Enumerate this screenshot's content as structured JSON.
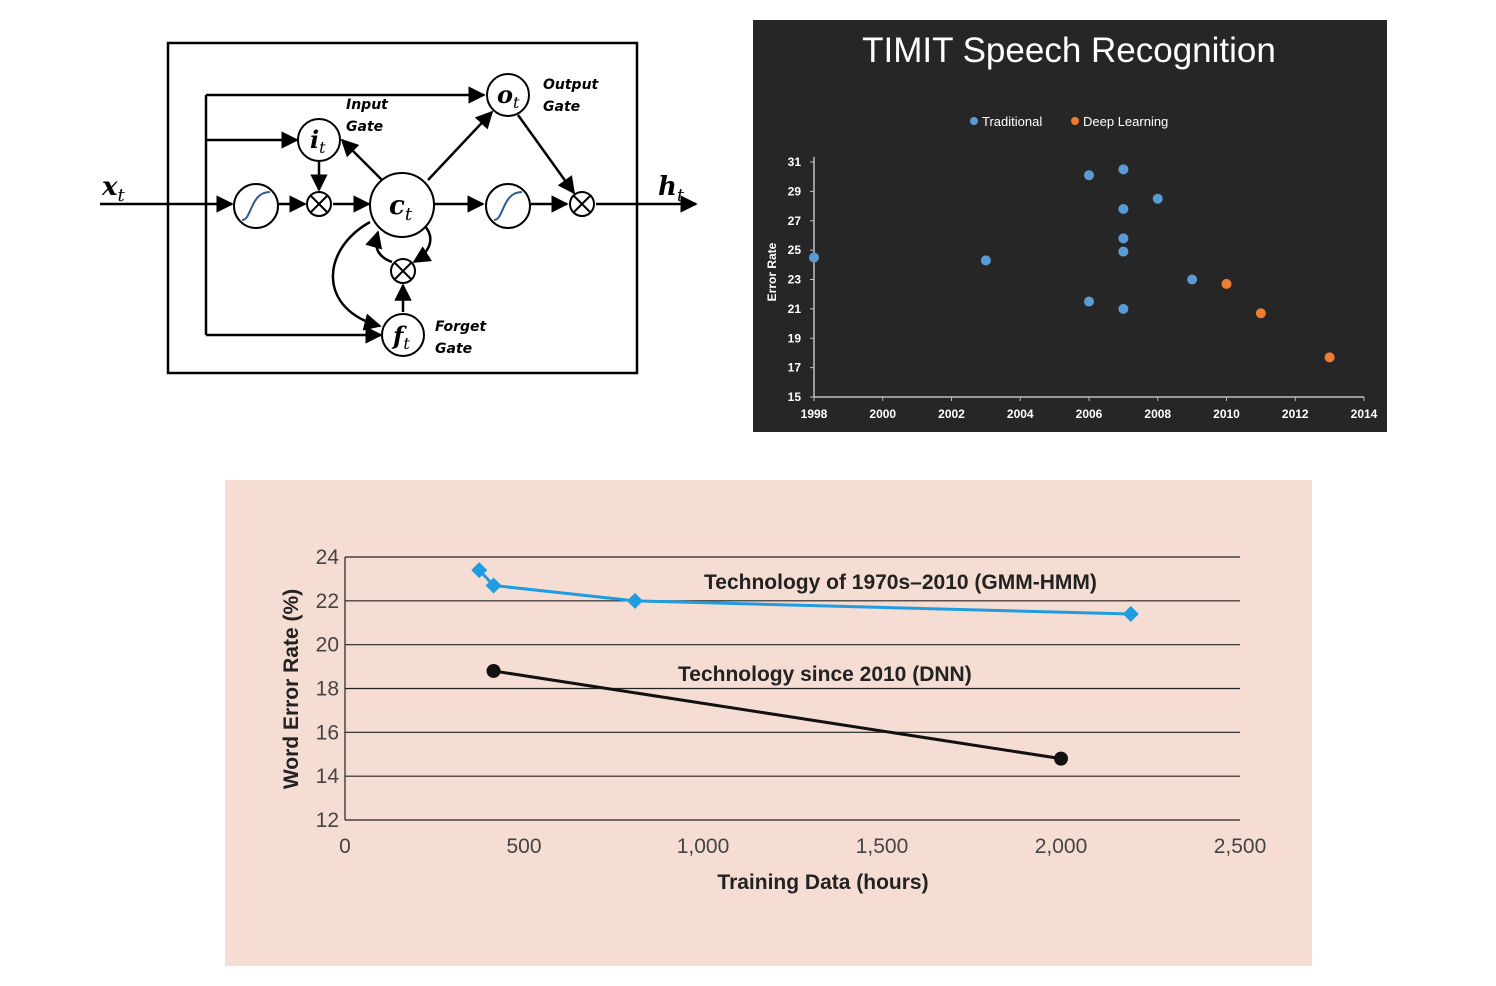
{
  "lstm": {
    "input_symbol": "x",
    "input_sub": "t",
    "output_symbol": "h",
    "output_sub": "t",
    "nodes": {
      "input_gate": {
        "symbol": "i",
        "sub": "t",
        "label_line1": "Input",
        "label_line2": "Gate"
      },
      "output_gate": {
        "symbol": "o",
        "sub": "t",
        "label_line1": "Output",
        "label_line2": "Gate"
      },
      "forget_gate": {
        "symbol": "f",
        "sub": "t",
        "label_line1": "Forget",
        "label_line2": "Gate"
      },
      "cell": {
        "symbol": "c",
        "sub": "t"
      }
    }
  },
  "timit_chart_text": {
    "ylabel": "Error Rate"
  },
  "chart_data": [
    {
      "type": "scatter",
      "title": "TIMIT Speech Recognition",
      "xlabel": "",
      "ylabel": "Error Rate",
      "xlim": [
        1998,
        2014
      ],
      "ylim": [
        15,
        31
      ],
      "xticks": [
        1998,
        2000,
        2002,
        2004,
        2006,
        2008,
        2010,
        2012,
        2014
      ],
      "yticks": [
        15,
        17,
        19,
        21,
        23,
        25,
        27,
        29,
        31
      ],
      "grid": false,
      "legend_position": "top",
      "background": "#262626",
      "series": [
        {
          "name": "Traditional",
          "color": "#5b9bd5",
          "points": [
            [
              1998,
              24.5
            ],
            [
              2003,
              24.3
            ],
            [
              2006,
              30.1
            ],
            [
              2006,
              21.5
            ],
            [
              2007,
              30.5
            ],
            [
              2007,
              27.8
            ],
            [
              2007,
              25.8
            ],
            [
              2007,
              24.9
            ],
            [
              2007,
              21.0
            ],
            [
              2008,
              28.5
            ],
            [
              2009,
              23.0
            ]
          ]
        },
        {
          "name": "Deep Learning",
          "color": "#ed7d31",
          "points": [
            [
              2010,
              22.7
            ],
            [
              2011,
              20.7
            ],
            [
              2013,
              17.7
            ]
          ]
        }
      ]
    },
    {
      "type": "line",
      "title": "",
      "xlabel": "Training Data (hours)",
      "ylabel": "Word Error Rate (%)",
      "xlim": [
        0,
        2500
      ],
      "ylim": [
        12,
        24
      ],
      "xticks": [
        0,
        500,
        1000,
        1500,
        2000,
        2500
      ],
      "xtick_labels": [
        "0",
        "500",
        "1,000",
        "1,500",
        "2,000",
        "2,500"
      ],
      "yticks": [
        12,
        14,
        16,
        18,
        20,
        22,
        24
      ],
      "grid": true,
      "background": "#f5ddd3",
      "series": [
        {
          "name": "Technology of 1970s–2010 (GMM-HMM)",
          "color": "#1f9de0",
          "marker": "diamond",
          "x": [
            375,
            415,
            810,
            2195
          ],
          "y": [
            23.4,
            22.7,
            22.0,
            21.4
          ]
        },
        {
          "name": "Technology since 2010 (DNN)",
          "color": "#111111",
          "marker": "circle",
          "x": [
            415,
            2000
          ],
          "y": [
            18.8,
            14.8
          ]
        }
      ]
    }
  ]
}
